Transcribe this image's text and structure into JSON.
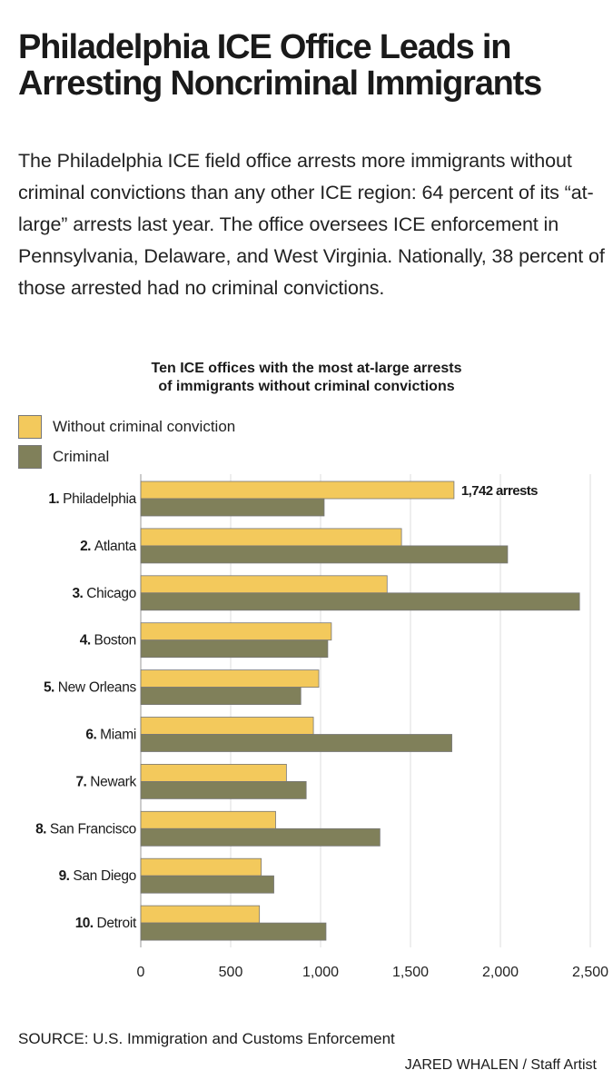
{
  "headline": "Philadelphia ICE Office Leads in Arresting Noncriminal Immigrants",
  "dek": "The Philadelphia ICE field office arrests more immigrants without criminal convictions than any other ICE region: 64 percent of its “at-large” arrests last year. The office oversees ICE enforcement in Pennsylvania, Delaware, and West Virginia. Nationally, 38 percent of those arrested had no criminal convictions.",
  "colors": {
    "noncriminal": "#f3c95c",
    "criminal": "#80805a",
    "grid": "#dddddd"
  },
  "chart_data": {
    "type": "bar",
    "orientation": "horizontal",
    "title": "Ten ICE offices with the most at-large arrests of immigrants without criminal convictions",
    "title_lines": [
      "Ten ICE offices with the most at-large arrests",
      "of immigrants without criminal convictions"
    ],
    "legend": [
      "Without criminal conviction",
      "Criminal"
    ],
    "categories": [
      {
        "rank": "1.",
        "name": "Philadelphia"
      },
      {
        "rank": "2.",
        "name": "Atlanta"
      },
      {
        "rank": "3.",
        "name": "Chicago"
      },
      {
        "rank": "4.",
        "name": "Boston"
      },
      {
        "rank": "5.",
        "name": "New Orleans"
      },
      {
        "rank": "6.",
        "name": "Miami"
      },
      {
        "rank": "7.",
        "name": "Newark"
      },
      {
        "rank": "8.",
        "name": "San Francisco"
      },
      {
        "rank": "9.",
        "name": "San Diego"
      },
      {
        "rank": "10.",
        "name": "Detroit"
      }
    ],
    "series": [
      {
        "name": "Without criminal conviction",
        "values": [
          1742,
          1450,
          1370,
          1060,
          990,
          960,
          810,
          750,
          670,
          660
        ]
      },
      {
        "name": "Criminal",
        "values": [
          1020,
          2040,
          2440,
          1040,
          890,
          1730,
          920,
          1330,
          740,
          1030
        ]
      }
    ],
    "annotation": {
      "series": 0,
      "index": 0,
      "text": "1,742 arrests"
    },
    "xlim": [
      0,
      2500
    ],
    "xticks": [
      0,
      500,
      1000,
      1500,
      2000,
      2500
    ],
    "xtick_labels": [
      "0",
      "500",
      "1,000",
      "1,500",
      "2,000",
      "2,500"
    ],
    "grid": true
  },
  "source": "SOURCE: U.S. Immigration and Customs Enforcement",
  "credit": "JARED WHALEN / Staff Artist"
}
